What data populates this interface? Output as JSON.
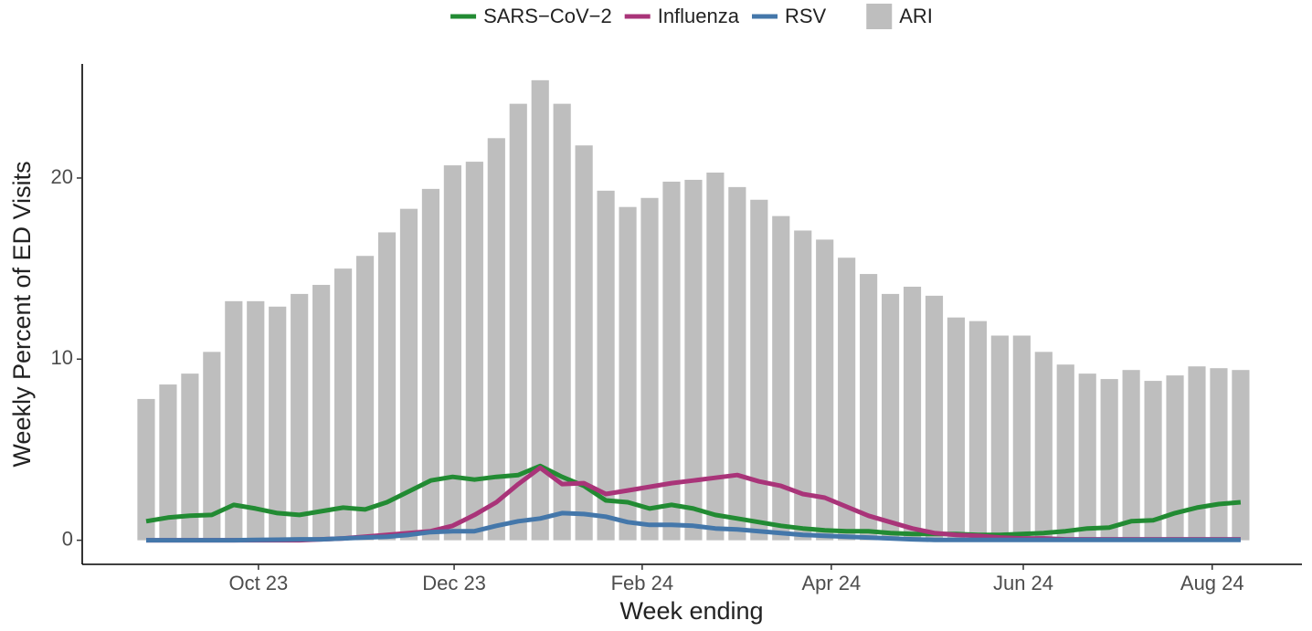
{
  "chart_data": {
    "type": "combo",
    "x_label": "Week ending",
    "y_label": "Weekly Percent of ED Visits",
    "categories": [
      null,
      null,
      null,
      null,
      null,
      null,
      null,
      null,
      null,
      null,
      null,
      null,
      null,
      null,
      null,
      null,
      null,
      null,
      null,
      null,
      null,
      null,
      null,
      null,
      null,
      null,
      null,
      null,
      null,
      null,
      null,
      null,
      null,
      null,
      null,
      null,
      null,
      null,
      null,
      null,
      null,
      null,
      null,
      null,
      null,
      null,
      null,
      null,
      null,
      null,
      null
    ],
    "xlim": [
      -2.92,
      52.8
    ],
    "xticks": [
      {
        "value": 5.13,
        "label": "Oct 23"
      },
      {
        "value": 14.07,
        "label": "Dec 23"
      },
      {
        "value": 22.66,
        "label": "Feb 24"
      },
      {
        "value": 31.3,
        "label": "Apr 24"
      },
      {
        "value": 40.07,
        "label": "Jun 24"
      },
      {
        "value": 48.7,
        "label": "Aug 24"
      }
    ],
    "ylim": [
      -1.33,
      26.3
    ],
    "yticks": [
      0,
      10,
      20
    ],
    "bars": {
      "name": "ARI",
      "color": "#bebebe",
      "values": [
        7.8,
        8.6,
        9.2,
        10.4,
        13.2,
        13.2,
        12.9,
        13.6,
        14.1,
        15.0,
        15.7,
        17.0,
        18.3,
        19.4,
        20.7,
        20.9,
        22.2,
        24.1,
        25.4,
        24.1,
        21.8,
        19.3,
        18.4,
        18.9,
        19.8,
        19.9,
        20.3,
        19.5,
        18.8,
        17.9,
        17.1,
        16.6,
        15.6,
        14.7,
        13.6,
        14.0,
        13.5,
        12.3,
        12.1,
        11.3,
        11.3,
        10.4,
        9.7,
        9.2,
        8.9,
        9.4,
        8.8,
        9.1,
        9.6,
        9.5,
        9.4
      ]
    },
    "series": [
      {
        "name": "SARS−CoV−2",
        "color": "#228b33",
        "values": [
          1.05,
          1.25,
          1.35,
          1.4,
          1.95,
          1.75,
          1.5,
          1.4,
          1.6,
          1.8,
          1.7,
          2.1,
          2.7,
          3.3,
          3.5,
          3.35,
          3.5,
          3.6,
          4.1,
          3.5,
          3.0,
          2.2,
          2.1,
          1.75,
          1.95,
          1.75,
          1.4,
          1.2,
          1.0,
          0.8,
          0.65,
          0.55,
          0.5,
          0.5,
          0.4,
          0.35,
          0.35,
          0.35,
          0.3,
          0.3,
          0.35,
          0.4,
          0.5,
          0.65,
          0.7,
          1.05,
          1.1,
          1.5,
          1.8,
          2.0,
          2.1
        ]
      },
      {
        "name": "Influenza",
        "color": "#a93479",
        "values": [
          0.0,
          0.0,
          0.0,
          0.0,
          0.0,
          0.0,
          0.0,
          0.0,
          0.05,
          0.1,
          0.2,
          0.3,
          0.4,
          0.5,
          0.8,
          1.4,
          2.1,
          3.1,
          4.0,
          3.1,
          3.15,
          2.55,
          2.75,
          2.95,
          3.15,
          3.3,
          3.45,
          3.6,
          3.25,
          3.0,
          2.55,
          2.35,
          1.85,
          1.35,
          1.0,
          0.65,
          0.4,
          0.3,
          0.25,
          0.15,
          0.1,
          0.1,
          0.05,
          0.05,
          0.05,
          0.05,
          0.05,
          0.05,
          0.05,
          0.05,
          0.05
        ]
      },
      {
        "name": "RSV",
        "color": "#4477aa",
        "values": [
          0.0,
          0.0,
          0.0,
          0.0,
          0.0,
          0.02,
          0.03,
          0.05,
          0.05,
          0.1,
          0.15,
          0.2,
          0.3,
          0.45,
          0.5,
          0.5,
          0.8,
          1.05,
          1.2,
          1.5,
          1.45,
          1.3,
          1.0,
          0.85,
          0.85,
          0.8,
          0.65,
          0.6,
          0.5,
          0.4,
          0.3,
          0.25,
          0.2,
          0.15,
          0.1,
          0.05,
          0.02,
          0.02,
          0.02,
          0.02,
          0.02,
          0.02,
          0.02,
          0.02,
          0.02,
          0.02,
          0.02,
          0.02,
          0.02,
          0.02,
          0.02
        ]
      }
    ]
  }
}
